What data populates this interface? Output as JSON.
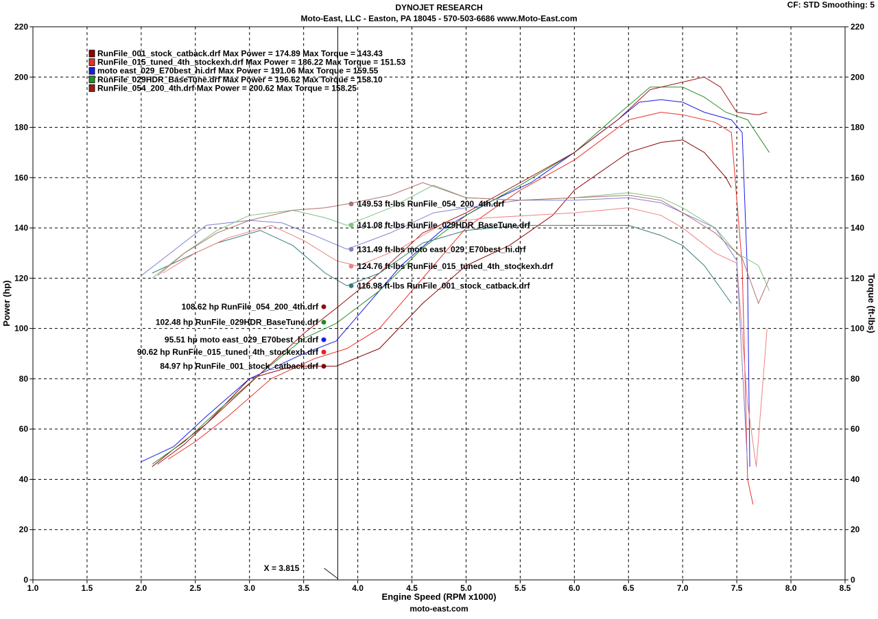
{
  "header": {
    "title": "DYNOJET RESEARCH",
    "subtitle": "Moto-East, LLC - Easton, PA 18045 - 570-503-6686 www.Moto-East.com",
    "settings": "CF: STD  Smoothing: 5",
    "footer": "moto-east.com"
  },
  "cursor": {
    "label": "X = 3.815",
    "x": 3.815
  },
  "chart_data": {
    "type": "line",
    "title": "DYNOJET RESEARCH",
    "xlabel": "Engine Speed (RPM x1000)",
    "ylabel": "Power (hp)",
    "y2label": "Torque (ft-lbs)",
    "xlim": [
      1.0,
      8.5
    ],
    "ylim": [
      0,
      220
    ],
    "y2lim": [
      0,
      220
    ],
    "x_ticks": [
      "1.0",
      "1.5",
      "2.0",
      "2.5",
      "3.0",
      "3.5",
      "4.0",
      "4.5",
      "5.0",
      "5.5",
      "6.0",
      "6.5",
      "7.0",
      "7.5",
      "8.0",
      "8.5"
    ],
    "y_ticks": [
      "0",
      "20",
      "40",
      "60",
      "80",
      "100",
      "120",
      "140",
      "160",
      "180",
      "200",
      "220"
    ],
    "grid": true,
    "legend_position": "top-left",
    "legend": [
      {
        "text": "RunFile_001_stock_catback.drf Max Power = 174.89     Max Torque = 143.43",
        "color": "#8b0000"
      },
      {
        "text": "RunFile_015_tuned_4th_stockexh.drf Max Power = 186.22     Max Torque = 151.53",
        "color": "#e8302a"
      },
      {
        "text": "moto east_029_E70best_hi.drf Max Power = 191.06     Max Torque = 159.55",
        "color": "#1a1ae6"
      },
      {
        "text": "RunFile_029HDR_BaseTune.drf Max Power = 196.62     Max Torque = 158.10",
        "color": "#2a8c2a"
      },
      {
        "text": "RunFile_054_200_4th.drf Max Power = 200.62     Max Torque = 158.25",
        "color": "#a01818"
      }
    ],
    "cursor_values": {
      "power": [
        {
          "text": "108.62 hp RunFile_054_200_4th.drf",
          "value": 108.62,
          "color": "#8b1010"
        },
        {
          "text": "102.48 hp RunFile_029HDR_BaseTune.drf",
          "value": 102.48,
          "color": "#228b22"
        },
        {
          "text": "95.51 hp moto east_029_E70best_hi.drf",
          "value": 95.51,
          "color": "#1a1ae6"
        },
        {
          "text": "90.62 hp RunFile_015_tuned_4th_stockexh.drf",
          "value": 90.62,
          "color": "#e82020"
        },
        {
          "text": "84.97 hp RunFile_001_stock_catback.drf",
          "value": 84.97,
          "color": "#7a0a0a"
        }
      ],
      "torque": [
        {
          "text": "149.53 ft-lbs RunFile_054_200_4th.drf",
          "value": 149.53,
          "color": "#b07070"
        },
        {
          "text": "141.08 ft-lbs RunFile_029HDR_BaseTune.drf",
          "value": 141.08,
          "color": "#80c080"
        },
        {
          "text": "131.49 ft-lbs moto east_029_E70best_hi.drf",
          "value": 131.49,
          "color": "#8080d0"
        },
        {
          "text": "124.76 ft-lbs RunFile_015_tuned_4th_stockexh.drf",
          "value": 124.76,
          "color": "#f08080"
        },
        {
          "text": "116.98 ft-lbs RunFile_001_stock_catback.drf",
          "value": 116.98,
          "color": "#3a7a7a"
        }
      ]
    },
    "series": [
      {
        "kind": "power",
        "color": "#8b0000",
        "points": [
          [
            2.1,
            45
          ],
          [
            2.3,
            52
          ],
          [
            2.6,
            62
          ],
          [
            3.0,
            80
          ],
          [
            3.4,
            85
          ],
          [
            3.8,
            85
          ],
          [
            4.2,
            92
          ],
          [
            4.6,
            110
          ],
          [
            5.0,
            125
          ],
          [
            5.4,
            133
          ],
          [
            5.8,
            145
          ],
          [
            6.0,
            155
          ],
          [
            6.5,
            170
          ],
          [
            6.8,
            174
          ],
          [
            7.0,
            175
          ],
          [
            7.2,
            170
          ],
          [
            7.4,
            160
          ],
          [
            7.45,
            156
          ]
        ]
      },
      {
        "kind": "power",
        "color": "#e8302a",
        "points": [
          [
            2.25,
            48
          ],
          [
            2.5,
            55
          ],
          [
            2.8,
            65
          ],
          [
            3.2,
            80
          ],
          [
            3.6,
            88
          ],
          [
            3.9,
            92
          ],
          [
            4.2,
            100
          ],
          [
            4.6,
            120
          ],
          [
            5.0,
            140
          ],
          [
            5.5,
            155
          ],
          [
            6.0,
            167
          ],
          [
            6.5,
            183
          ],
          [
            6.8,
            186
          ],
          [
            7.0,
            185
          ],
          [
            7.3,
            182
          ],
          [
            7.45,
            178
          ],
          [
            7.55,
            125
          ],
          [
            7.6,
            40
          ],
          [
            7.65,
            30
          ]
        ]
      },
      {
        "kind": "power",
        "color": "#1a1ae6",
        "points": [
          [
            2.0,
            47
          ],
          [
            2.3,
            53
          ],
          [
            2.6,
            65
          ],
          [
            3.0,
            80
          ],
          [
            3.5,
            90
          ],
          [
            3.8,
            95
          ],
          [
            4.0,
            105
          ],
          [
            4.4,
            125
          ],
          [
            4.8,
            140
          ],
          [
            5.2,
            150
          ],
          [
            5.6,
            158
          ],
          [
            6.0,
            170
          ],
          [
            6.4,
            183
          ],
          [
            6.6,
            190
          ],
          [
            6.8,
            191
          ],
          [
            7.0,
            190
          ],
          [
            7.2,
            186
          ],
          [
            7.45,
            183
          ],
          [
            7.55,
            178
          ],
          [
            7.6,
            120
          ],
          [
            7.62,
            45
          ]
        ]
      },
      {
        "kind": "power",
        "color": "#2a8c2a",
        "points": [
          [
            2.1,
            46
          ],
          [
            2.4,
            55
          ],
          [
            2.7,
            67
          ],
          [
            3.1,
            82
          ],
          [
            3.5,
            96
          ],
          [
            3.8,
            102
          ],
          [
            4.2,
            115
          ],
          [
            4.6,
            132
          ],
          [
            5.0,
            145
          ],
          [
            5.5,
            157
          ],
          [
            6.0,
            170
          ],
          [
            6.4,
            185
          ],
          [
            6.7,
            196
          ],
          [
            7.0,
            196
          ],
          [
            7.2,
            192
          ],
          [
            7.4,
            186
          ],
          [
            7.6,
            183
          ],
          [
            7.8,
            170
          ]
        ]
      },
      {
        "kind": "power",
        "color": "#a01818",
        "points": [
          [
            2.15,
            46
          ],
          [
            2.4,
            54
          ],
          [
            2.7,
            66
          ],
          [
            3.1,
            82
          ],
          [
            3.5,
            98
          ],
          [
            3.8,
            108
          ],
          [
            4.2,
            122
          ],
          [
            4.6,
            138
          ],
          [
            5.0,
            146
          ],
          [
            5.5,
            158
          ],
          [
            6.0,
            170
          ],
          [
            6.4,
            183
          ],
          [
            6.7,
            195
          ],
          [
            7.0,
            198
          ],
          [
            7.2,
            200
          ],
          [
            7.35,
            196
          ],
          [
            7.5,
            186
          ],
          [
            7.7,
            185
          ],
          [
            7.78,
            186
          ]
        ]
      },
      {
        "kind": "torque",
        "color": "#3a7a7a",
        "points": [
          [
            2.1,
            122
          ],
          [
            2.4,
            128
          ],
          [
            2.7,
            134
          ],
          [
            3.1,
            139
          ],
          [
            3.4,
            133
          ],
          [
            3.7,
            122
          ],
          [
            3.9,
            117
          ],
          [
            4.2,
            122
          ],
          [
            4.6,
            134
          ],
          [
            5.0,
            139
          ],
          [
            5.5,
            141
          ],
          [
            6.0,
            141
          ],
          [
            6.5,
            141
          ],
          [
            6.8,
            137
          ],
          [
            7.0,
            133
          ],
          [
            7.2,
            125
          ],
          [
            7.45,
            110
          ]
        ]
      },
      {
        "kind": "torque",
        "color": "#f08080",
        "points": [
          [
            2.2,
            122
          ],
          [
            2.5,
            130
          ],
          [
            2.8,
            136
          ],
          [
            3.2,
            141
          ],
          [
            3.5,
            135
          ],
          [
            3.8,
            127
          ],
          [
            4.0,
            124.8
          ],
          [
            4.4,
            132
          ],
          [
            4.8,
            142
          ],
          [
            5.2,
            144
          ],
          [
            5.6,
            145
          ],
          [
            6.0,
            146
          ],
          [
            6.5,
            148
          ],
          [
            6.8,
            145
          ],
          [
            7.0,
            140
          ],
          [
            7.3,
            130
          ],
          [
            7.5,
            126
          ],
          [
            7.6,
            70
          ],
          [
            7.68,
            45
          ],
          [
            7.78,
            100
          ]
        ]
      },
      {
        "kind": "torque",
        "color": "#8080d0",
        "points": [
          [
            2.0,
            121
          ],
          [
            2.3,
            131
          ],
          [
            2.6,
            141
          ],
          [
            3.0,
            143
          ],
          [
            3.3,
            142
          ],
          [
            3.6,
            137
          ],
          [
            3.9,
            131.5
          ],
          [
            4.3,
            138
          ],
          [
            4.7,
            146
          ],
          [
            5.0,
            148
          ],
          [
            5.5,
            151
          ],
          [
            6.0,
            151
          ],
          [
            6.5,
            152
          ],
          [
            6.8,
            150
          ],
          [
            7.0,
            146
          ],
          [
            7.3,
            140
          ],
          [
            7.5,
            127
          ],
          [
            7.6,
            45
          ]
        ]
      },
      {
        "kind": "torque",
        "color": "#80c080",
        "points": [
          [
            2.1,
            120
          ],
          [
            2.4,
            130
          ],
          [
            2.7,
            139
          ],
          [
            3.0,
            145
          ],
          [
            3.4,
            147
          ],
          [
            3.7,
            144
          ],
          [
            3.9,
            141
          ],
          [
            4.3,
            148
          ],
          [
            4.7,
            157
          ],
          [
            5.0,
            152
          ],
          [
            5.5,
            151
          ],
          [
            6.0,
            152
          ],
          [
            6.5,
            154
          ],
          [
            6.8,
            152
          ],
          [
            7.0,
            148
          ],
          [
            7.3,
            140
          ],
          [
            7.5,
            130
          ],
          [
            7.7,
            125
          ],
          [
            7.8,
            115
          ]
        ]
      },
      {
        "kind": "torque",
        "color": "#b07070",
        "points": [
          [
            2.15,
            121
          ],
          [
            2.4,
            130
          ],
          [
            2.7,
            138
          ],
          [
            3.0,
            143
          ],
          [
            3.4,
            147
          ],
          [
            3.7,
            148
          ],
          [
            3.9,
            149.5
          ],
          [
            4.3,
            153
          ],
          [
            4.6,
            158
          ],
          [
            5.0,
            152
          ],
          [
            5.5,
            151
          ],
          [
            6.0,
            152
          ],
          [
            6.5,
            153
          ],
          [
            6.8,
            151
          ],
          [
            7.0,
            146
          ],
          [
            7.3,
            138
          ],
          [
            7.55,
            128
          ],
          [
            7.7,
            110
          ],
          [
            7.8,
            120
          ]
        ]
      }
    ]
  }
}
